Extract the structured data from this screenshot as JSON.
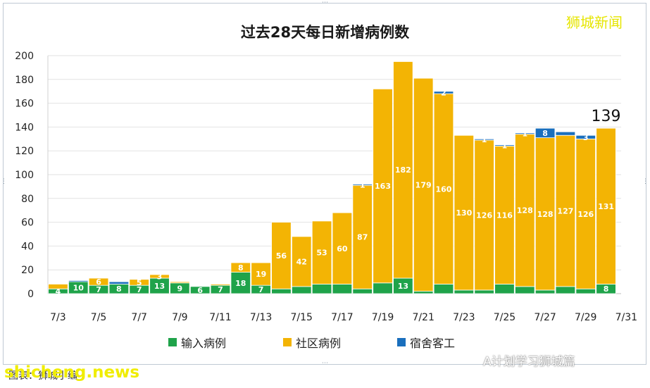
{
  "chart_data": {
    "type": "bar",
    "stacked": true,
    "title": "过去28天每日新增病例数",
    "categories": [
      "7/3",
      "7/4",
      "7/5",
      "7/6",
      "7/7",
      "7/8",
      "7/9",
      "7/10",
      "7/11",
      "7/12",
      "7/13",
      "7/14",
      "7/15",
      "7/16",
      "7/17",
      "7/18",
      "7/19",
      "7/20",
      "7/21",
      "7/22",
      "7/23",
      "7/24",
      "7/25",
      "7/26",
      "7/27",
      "7/28",
      "7/29",
      "7/30"
    ],
    "x_tick_labels": [
      "7/3",
      "7/5",
      "7/7",
      "7/9",
      "7/11",
      "7/13",
      "7/15",
      "7/17",
      "7/19",
      "7/21",
      "7/23",
      "7/25",
      "7/27",
      "7/29",
      "7/31"
    ],
    "ylim": [
      0,
      200
    ],
    "yticks": [
      0,
      20,
      40,
      60,
      80,
      100,
      120,
      140,
      160,
      180,
      200
    ],
    "grid": true,
    "legend_position": "bottom",
    "series": [
      {
        "name": "输入病例",
        "color": "#1fa34a",
        "values": [
          4,
          10,
          7,
          8,
          7,
          13,
          9,
          6,
          7,
          18,
          7,
          4,
          6,
          8,
          8,
          4,
          9,
          13,
          2,
          8,
          3,
          3,
          8,
          6,
          3,
          6,
          4,
          8
        ],
        "labels": [
          "4",
          "10",
          "7",
          "8",
          "7",
          "13",
          "9",
          "6",
          "7",
          "18",
          "7",
          "",
          "",
          "",
          "",
          "",
          "",
          "13",
          "",
          "",
          "",
          "",
          "",
          "",
          "",
          "",
          "",
          "8"
        ]
      },
      {
        "name": "社区病例",
        "color": "#f3b404",
        "values": [
          4,
          0,
          6,
          0,
          5,
          3,
          1,
          0,
          1,
          8,
          19,
          56,
          42,
          53,
          60,
          87,
          163,
          182,
          179,
          160,
          130,
          126,
          116,
          128,
          128,
          127,
          126,
          131
        ],
        "labels": [
          "",
          "",
          "6",
          "",
          "5",
          "3",
          "",
          "",
          "",
          "8",
          "19",
          "56",
          "42",
          "53",
          "60",
          "87",
          "163",
          "182",
          "179",
          "160",
          "130",
          "126",
          "116",
          "128",
          "128",
          "127",
          "126",
          "131"
        ]
      },
      {
        "name": "宿舍客工",
        "color": "#1a6fbd",
        "values": [
          0,
          1,
          0,
          2,
          0,
          0,
          0,
          0,
          0,
          0,
          0,
          0,
          0,
          0,
          0,
          1,
          0,
          0,
          0,
          2,
          0,
          1,
          1,
          1,
          8,
          3,
          3,
          0
        ],
        "labels": [
          "",
          "",
          "",
          "",
          "",
          "",
          "",
          "",
          "",
          "",
          "",
          "",
          "",
          "",
          "",
          "1",
          "",
          "",
          "",
          "2",
          "",
          "1",
          "1",
          "1",
          "8",
          "",
          "3",
          ""
        ]
      }
    ],
    "annotation": "139"
  },
  "brand": "狮城新闻",
  "bottom_note": "图表：狮城小编",
  "logo_text": "shicheng.news",
  "watermark": "A计划学习狮城篇"
}
